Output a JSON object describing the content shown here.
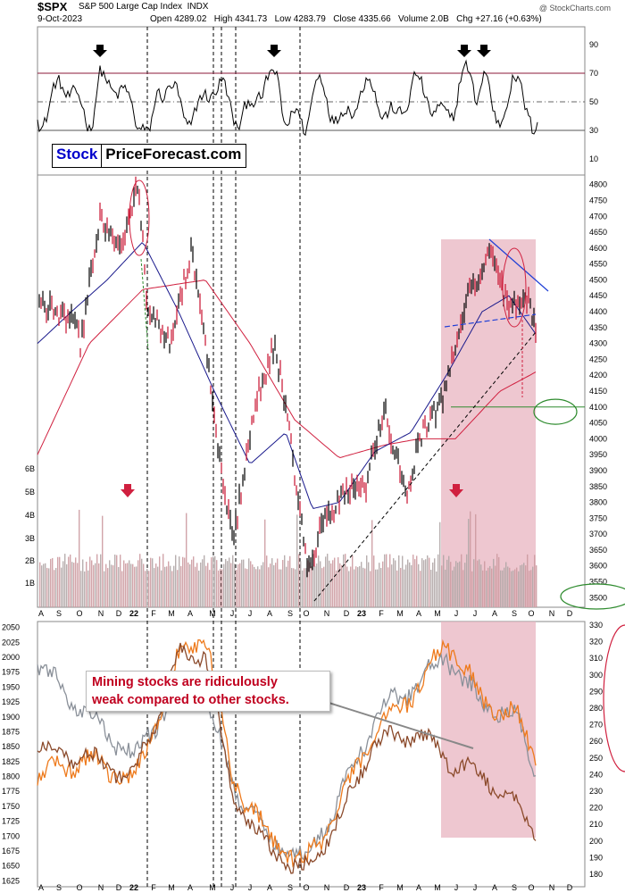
{
  "header": {
    "ticker": "$SPX",
    "description": "S&P 500 Large Cap Index",
    "exchange": "INDX",
    "watermark": "@ StockCharts.com",
    "date": "9-Oct-2023",
    "open": "Open 4289.02",
    "high": "High 4341.73",
    "low": "Low 4283.79",
    "close": "Close 4335.66",
    "volume": "Volume 2.0B",
    "chg": "Chg +27.16 (+0.63%)"
  },
  "logo": {
    "part1": "Stock",
    "part2": "PriceForecast.com"
  },
  "annotation": {
    "line1": "Mining stocks are ridiculously",
    "line2": "weak compared to other stocks."
  },
  "colors": {
    "price_up": "#000000",
    "price_down": "#c8102e",
    "ma_fast": "#1a1a8c",
    "ma_slow": "#d0203f",
    "highlight": "#e8b4c0",
    "gold": "#ee7a1c",
    "silver": "#8a9099",
    "miners": "#8b4a2b",
    "support_line": "#2e8b2e",
    "arrow_black": "#000000",
    "arrow_red": "#d0203f"
  },
  "chart_data": [
    {
      "type": "line",
      "panel": "RSI",
      "y_ticks": [
        90,
        70,
        50,
        30,
        10
      ],
      "reference_levels": [
        70,
        50,
        30
      ],
      "ylim": [
        0,
        100
      ],
      "arrows_at": [
        "Nov 2021",
        "Aug 2022",
        "Jun 2023",
        "Jul 2023"
      ]
    },
    {
      "type": "line",
      "panel": "Price",
      "x_labels": [
        "A",
        "S",
        "O",
        "N",
        "D",
        "22",
        "F",
        "M",
        "A",
        "M",
        "J",
        "J",
        "A",
        "S",
        "O",
        "N",
        "D",
        "23",
        "F",
        "M",
        "A",
        "M",
        "J",
        "J",
        "A",
        "S",
        "O",
        "N",
        "D"
      ],
      "y_ticks": [
        4800,
        4750,
        4700,
        4650,
        4600,
        4550,
        4500,
        4450,
        4400,
        4350,
        4300,
        4250,
        4200,
        4150,
        4100,
        4050,
        4000,
        3950,
        3900,
        3850,
        3800,
        3750,
        3700,
        3650,
        3600,
        3550,
        3500
      ],
      "volume_ticks": [
        "6B",
        "5B",
        "4B",
        "3B",
        "2B",
        "1B"
      ],
      "ylim": [
        3470,
        4830
      ],
      "series": [
        {
          "name": "",
          "x": [
            "2021-08",
            "2021-11",
            "2022-01",
            "2022-03",
            "2022-06",
            "2022-08",
            "2022-10",
            "2023-01",
            "2023-03",
            "2023-07",
            "2023-10"
          ],
          "values": [
            4400,
            4680,
            4790,
            4500,
            3700,
            4300,
            3580,
            3900,
            3900,
            4600,
            4300
          ]
        }
      ],
      "support_level": 4100
    },
    {
      "type": "line",
      "panel": "Metals",
      "x_labels": [
        "A",
        "S",
        "O",
        "N",
        "D",
        "22",
        "F",
        "M",
        "A",
        "M",
        "J",
        "J",
        "A",
        "S",
        "O",
        "N",
        "D",
        "23",
        "F",
        "M",
        "A",
        "M",
        "J",
        "J",
        "A",
        "S",
        "O",
        "N",
        "D"
      ],
      "left_ticks": [
        2050,
        2025,
        2000,
        1975,
        1950,
        1925,
        1900,
        1875,
        1850,
        1825,
        1800,
        1775,
        1750,
        1725,
        1700,
        1675,
        1650,
        1625
      ],
      "right_ticks": [
        330,
        320,
        310,
        300,
        290,
        280,
        270,
        260,
        250,
        240,
        230,
        220,
        210,
        200,
        190,
        180
      ],
      "left_ylim": [
        1615,
        2060
      ],
      "series": [
        {
          "name": "",
          "x": [
            "2021-08",
            "2022-03",
            "2022-10",
            "2023-05",
            "2023-10"
          ],
          "values": [
            1810,
            2050,
            1640,
            2050,
            1830
          ]
        },
        {
          "name": "",
          "x": [
            "2021-08",
            "2022-03",
            "2022-10",
            "2023-05",
            "2023-10"
          ],
          "values": [
            1950,
            1990,
            1650,
            2000,
            1840
          ]
        },
        {
          "name": "",
          "x": [
            "2021-08",
            "2022-03",
            "2022-10",
            "2023-05",
            "2023-10"
          ],
          "values": [
            1850,
            2040,
            1630,
            1980,
            1705
          ]
        }
      ]
    }
  ]
}
